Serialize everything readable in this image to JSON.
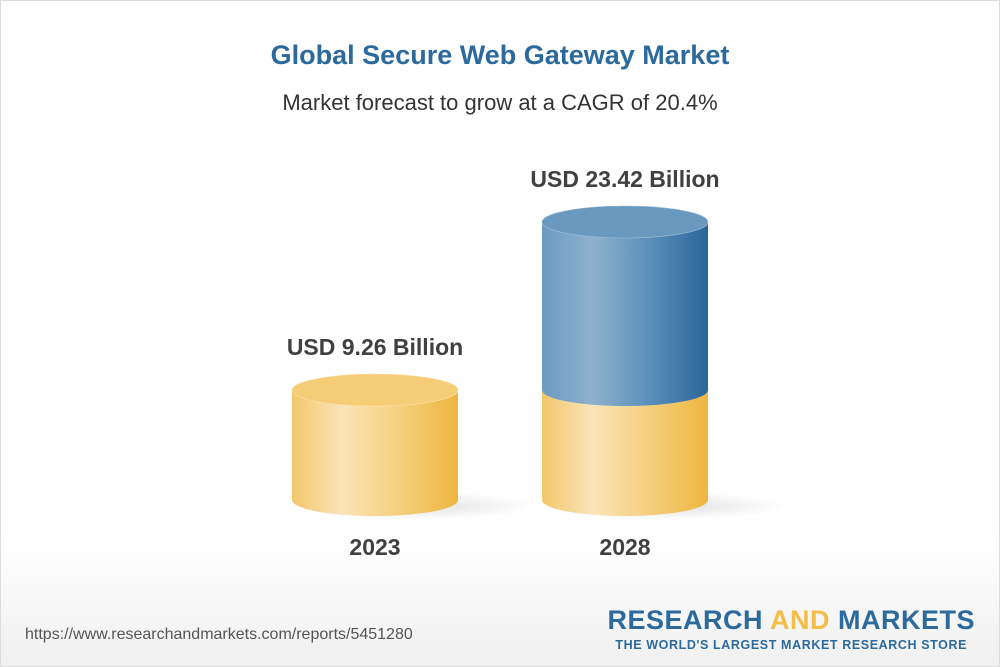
{
  "header": {
    "title": "Global Secure Web Gateway Market",
    "subtitle": "Market forecast to grow at a CAGR of 20.4%"
  },
  "chart_data": {
    "type": "bar",
    "style": "3d-cylinder",
    "title": "Global Secure Web Gateway Market",
    "subtitle": "Market forecast to grow at a CAGR of 20.4%",
    "categories": [
      "2023",
      "2028"
    ],
    "values": [
      9.26,
      23.42
    ],
    "data_labels": [
      "USD 9.26 Billion",
      "USD 23.42 Billion"
    ],
    "unit": "USD Billion",
    "grid": false,
    "colors": {
      "base": "#f2bd48",
      "growth": "#2c6a9e",
      "title": "#2c6a9e",
      "text": "#404040"
    }
  },
  "footer": {
    "url": "https://www.researchandmarkets.com/reports/5451280",
    "logo": {
      "part1": "RESEARCH ",
      "part2": "AND",
      "part3": " MARKETS",
      "tagline": "THE WORLD'S LARGEST MARKET RESEARCH STORE",
      "colors": {
        "blue": "#2c6a9e",
        "yellow": "#f2bd48"
      }
    }
  }
}
